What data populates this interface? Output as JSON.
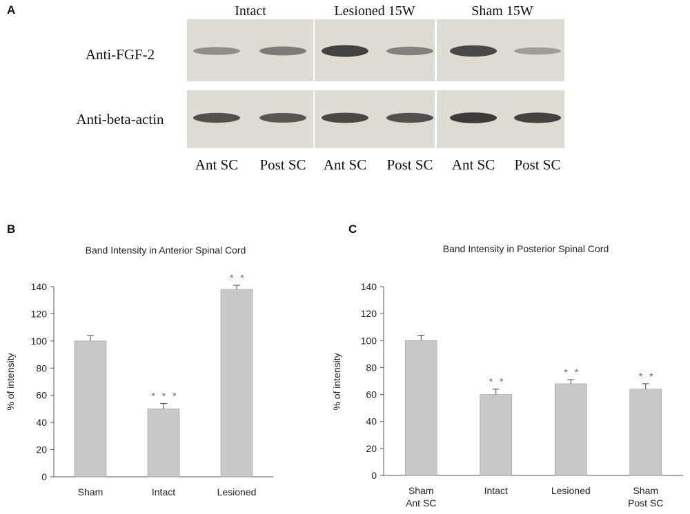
{
  "panel_a": {
    "letter": "A",
    "groups": [
      "Intact",
      "Lesioned 15W",
      "Sham 15W"
    ],
    "rows": [
      "Anti-FGF-2",
      "Anti-beta-actin"
    ],
    "lanes": [
      "Ant SC",
      "Post SC",
      "Ant SC",
      "Post SC",
      "Ant SC",
      "Post SC"
    ],
    "fgf2_band_strength": [
      0.35,
      0.5,
      0.9,
      0.45,
      0.85,
      0.25
    ],
    "actin_band_strength": [
      0.8,
      0.75,
      0.85,
      0.8,
      0.95,
      0.9
    ],
    "colors": {
      "membrane": "#dcdcd4",
      "band": "#2a2a2a"
    }
  },
  "chart_data": [
    {
      "letter": "B",
      "type": "bar",
      "title": "Band Intensity in Anterior Spinal Cord",
      "ylabel": "% of intensity",
      "xlabel": "",
      "ylim": [
        0,
        140
      ],
      "yticks": [
        "0",
        "20",
        "40",
        "60",
        "80",
        "100",
        "120",
        "140"
      ],
      "categories": [
        [
          "Sham"
        ],
        [
          "Intact"
        ],
        [
          "Lesioned"
        ]
      ],
      "values": [
        100,
        50,
        138
      ],
      "errors": [
        4,
        4,
        3
      ],
      "significance": [
        "",
        "* * *",
        "* *"
      ],
      "bar_color": "#c8c8c8"
    },
    {
      "letter": "C",
      "type": "bar",
      "title": "Band Intensity in Posterior Spinal Cord",
      "ylabel": "% of intensity",
      "xlabel": "",
      "ylim": [
        0,
        140
      ],
      "yticks": [
        "0",
        "20",
        "40",
        "60",
        "80",
        "100",
        "120",
        "140"
      ],
      "categories": [
        [
          "Sham",
          "Ant SC"
        ],
        [
          "Intact"
        ],
        [
          "Lesioned"
        ],
        [
          "Sham",
          "Post SC"
        ]
      ],
      "values": [
        100,
        60,
        68,
        64
      ],
      "errors": [
        4,
        4,
        3,
        4
      ],
      "significance": [
        "",
        "* *",
        "* *",
        "* *"
      ],
      "bar_color": "#c8c8c8"
    }
  ]
}
